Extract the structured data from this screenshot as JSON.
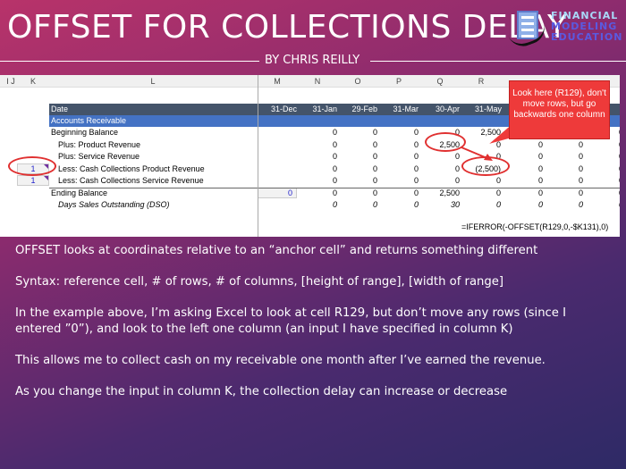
{
  "title": "OFFSET FOR COLLECTIONS DELAY",
  "byline": "BY CHRIS REILLY",
  "logo": {
    "line1": "FINANCIAL",
    "line2": "MODELING",
    "line3": "EDUCATION"
  },
  "sheet": {
    "columns": [
      "I J",
      "K",
      "L",
      "M",
      "N",
      "O",
      "P",
      "Q",
      "R"
    ],
    "dates": [
      "31-Dec",
      "31-Jan",
      "29-Feb",
      "31-Mar",
      "30-Apr",
      "31-May"
    ],
    "date_label": "Date",
    "section": "Accounts Receivable",
    "rows": [
      {
        "label": "Beginning Balance",
        "values": [
          "",
          "0",
          "0",
          "0",
          "0",
          "2,500",
          "",
          "",
          "0"
        ]
      },
      {
        "label": "Plus: Product Revenue",
        "values": [
          "",
          "0",
          "0",
          "0",
          "2,500",
          "0",
          "0",
          "0",
          "0"
        ]
      },
      {
        "label": "Plus: Service Revenue",
        "values": [
          "",
          "0",
          "0",
          "0",
          "0",
          "0",
          "0",
          "0",
          "0"
        ]
      },
      {
        "label": "Less: Cash Collections Product Revenue",
        "k": "1",
        "values": [
          "",
          "0",
          "0",
          "0",
          "0",
          "(2,500)",
          "0",
          "0",
          "0"
        ]
      },
      {
        "label": "Less: Cash Collections Service Revenue",
        "k": "1",
        "values": [
          "",
          "0",
          "0",
          "0",
          "0",
          "0",
          "0",
          "0",
          "0"
        ]
      },
      {
        "label": "Ending Balance",
        "values": [
          "0",
          "0",
          "0",
          "0",
          "2,500",
          "0",
          "0",
          "0",
          "0"
        ]
      },
      {
        "label": "Days Sales Outstanding (DSO)",
        "values": [
          "",
          "0",
          "0",
          "0",
          "30",
          "0",
          "0",
          "0",
          "0"
        ]
      }
    ],
    "formula": "=IFERROR(-OFFSET(R129,0,-$K131),0)",
    "callout": "Look here (R129), don't move rows, but go backwards one column"
  },
  "body": [
    "OFFSET looks at coordinates relative to an “anchor cell” and returns something different",
    "Syntax: reference cell, # of rows, # of columns, [height of range], [width of range]",
    "In the example above, I’m asking Excel to look at cell R129, but don’t move any rows (since I entered ”0”), and look to the left one column (an input I have specified in column K)",
    "This allows me to collect cash on my receivable one month after I’ve earned the revenue.",
    "As you change the input in column K, the collection delay can increase or decrease"
  ],
  "colors": {
    "header": "#44546a",
    "section": "#4472c4",
    "callout": "#ee3a3a",
    "input": "#2222cc"
  }
}
